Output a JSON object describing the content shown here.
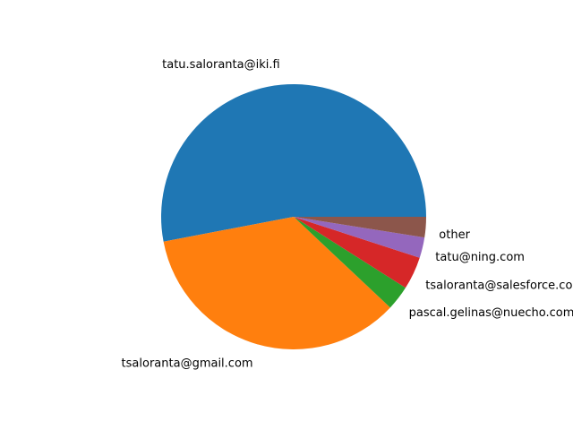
{
  "chart_data": {
    "type": "pie",
    "labels": [
      "tatu.saloranta@iki.fi",
      "tsaloranta@gmail.com",
      "pascal.gelinas@nuecho.com",
      "tsaloranta@salesforce.com",
      "tatu@ning.com",
      "other"
    ],
    "values": [
      53,
      35,
      3,
      4,
      2.5,
      2.5
    ],
    "colors": [
      "#1f77b4",
      "#ff7f0e",
      "#2ca02c",
      "#d62728",
      "#9467bd",
      "#8c564b"
    ],
    "start_angle_deg": 0,
    "direction": "counterclockwise"
  }
}
